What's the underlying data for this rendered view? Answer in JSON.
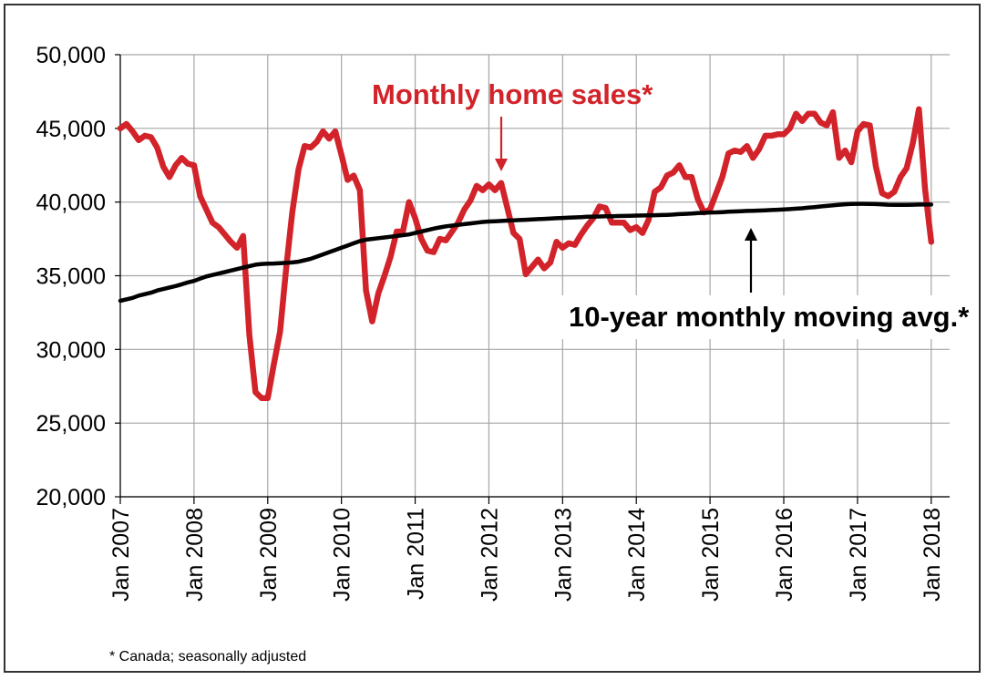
{
  "chart_data": {
    "type": "line",
    "x_start": "Jan 2007",
    "x_end": "Mar 2018",
    "ylim": [
      20000,
      50000
    ],
    "y_ticks": [
      20000,
      25000,
      30000,
      35000,
      40000,
      45000,
      50000
    ],
    "y_tick_labels": [
      "20,000",
      "25,000",
      "30,000",
      "35,000",
      "40,000",
      "45,000",
      "50,000"
    ],
    "x_tick_labels": [
      "Jan 2007",
      "Jan 2008",
      "Jan 2009",
      "Jan 2010",
      "Jan 2011",
      "Jan 2012",
      "Jan 2013",
      "Jan 2014",
      "Jan 2015",
      "Jan 2016",
      "Jan 2017",
      "Jan 2018"
    ],
    "grid": true,
    "colors": {
      "home_sales": "#d2232a",
      "moving_avg": "#000000",
      "grid": "#a6a6a6"
    },
    "series": [
      {
        "name": "Monthly home sales*",
        "values": [
          45000,
          45300,
          44800,
          44200,
          44500,
          44400,
          43700,
          42400,
          41700,
          42500,
          43000,
          42600,
          42500,
          40400,
          39500,
          38600,
          38300,
          37800,
          37300,
          36900,
          37700,
          31000,
          27100,
          26700,
          26700,
          29000,
          31200,
          35500,
          39300,
          42200,
          43800,
          43700,
          44100,
          44800,
          44300,
          44800,
          43200,
          41500,
          41800,
          40800,
          34000,
          31900,
          33800,
          35000,
          36300,
          38000,
          38000,
          40000,
          38900,
          37500,
          36700,
          36600,
          37500,
          37400,
          38000,
          38600,
          39500,
          40100,
          41100,
          40800,
          41200,
          40800,
          41300,
          39600,
          37900,
          37500,
          35100,
          35600,
          36100,
          35500,
          35900,
          37300,
          36900,
          37200,
          37100,
          37800,
          38400,
          38900,
          39700,
          39600,
          38600,
          38600,
          38600,
          38100,
          38300,
          37900,
          38800,
          40700,
          41000,
          41800,
          42000,
          42500,
          41700,
          41700,
          40200,
          39300,
          39500,
          40600,
          41700,
          43300,
          43500,
          43400,
          43800,
          43000,
          43600,
          44500,
          44500,
          44600,
          44600,
          45000,
          46000,
          45500,
          46000,
          46000,
          45400,
          45200,
          46100,
          43000,
          43500,
          42700,
          44800,
          45300,
          45200,
          42400,
          40600,
          40400,
          40700,
          41700,
          42300,
          44000,
          46300,
          40900,
          37300
        ]
      },
      {
        "name": "10-year monthly moving avg.*",
        "values": [
          33300,
          33400,
          33500,
          33650,
          33750,
          33850,
          34000,
          34100,
          34200,
          34300,
          34420,
          34550,
          34650,
          34800,
          34950,
          35050,
          35150,
          35250,
          35350,
          35450,
          35550,
          35650,
          35750,
          35800,
          35820,
          35830,
          35850,
          35870,
          35900,
          35950,
          36050,
          36150,
          36300,
          36450,
          36600,
          36750,
          36900,
          37050,
          37200,
          37350,
          37450,
          37500,
          37550,
          37600,
          37650,
          37700,
          37750,
          37800,
          37900,
          38000,
          38100,
          38200,
          38280,
          38350,
          38400,
          38450,
          38500,
          38550,
          38600,
          38650,
          38680,
          38700,
          38720,
          38740,
          38760,
          38780,
          38800,
          38820,
          38840,
          38860,
          38880,
          38900,
          38920,
          38940,
          38960,
          38980,
          39000,
          39010,
          39020,
          39030,
          39040,
          39050,
          39060,
          39070,
          39080,
          39090,
          39100,
          39110,
          39120,
          39130,
          39150,
          39180,
          39200,
          39220,
          39250,
          39270,
          39290,
          39300,
          39320,
          39340,
          39360,
          39380,
          39400,
          39410,
          39420,
          39440,
          39460,
          39480,
          39500,
          39520,
          39550,
          39580,
          39620,
          39660,
          39700,
          39740,
          39780,
          39820,
          39850,
          39870,
          39880,
          39880,
          39870,
          39860,
          39840,
          39820,
          39810,
          39810,
          39810,
          39820,
          39830,
          39830,
          39830
        ]
      }
    ],
    "annotations": [
      {
        "text": "Monthly home sales*",
        "color": "#d2232a"
      },
      {
        "text": "10-year monthly moving avg.*",
        "color": "#000000"
      }
    ],
    "footnote": "* Canada; seasonally adjusted"
  }
}
